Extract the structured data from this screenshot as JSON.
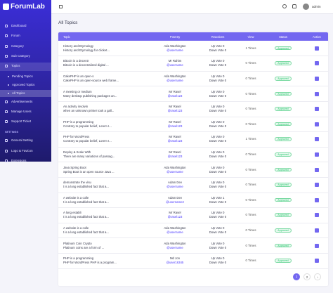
{
  "brand": "ForumLab",
  "sidebar": {
    "items": [
      "Dashboard",
      "Forum",
      "Category",
      "Sub Category",
      "Topics"
    ],
    "submenu": [
      "Pending Topics",
      "Approved Topics",
      "All Topics"
    ],
    "items2": [
      "Advertisements",
      "Manage Users",
      "Support Ticket"
    ],
    "settings_heading": "SETTINGS",
    "settings_items": [
      "General Setting",
      "Logo & Favicon",
      "Extensions"
    ]
  },
  "topbar": {
    "user": "admin"
  },
  "page": {
    "title": "All Topics"
  },
  "table": {
    "headers": [
      "Topic",
      "Post By",
      "Reactions",
      "View",
      "Status",
      "Action"
    ],
    "rows": [
      {
        "title": "History and Etymology",
        "excerpt": "History and Etymology for clicket...",
        "author": "Ada Washington",
        "username": "@username",
        "up": "Up Vote 0",
        "down": "Down Vote 0",
        "views": "1 Times",
        "status": "Approved"
      },
      {
        "title": "Bitcoin is a decentr",
        "excerpt": "Bitcoin is a decentralized digital ...",
        "author": "Mr Rahim",
        "username": "@username",
        "up": "Up Vote 0",
        "down": "Down Vote 0",
        "views": "0 Times",
        "status": "Approved"
      },
      {
        "title": "CakePHP is an open-s",
        "excerpt": "CakePHP is an open-source web frame...",
        "author": "Ada Washington",
        "username": "@username",
        "up": "Up Vote 0",
        "down": "Down Vote 0",
        "views": "0 Times",
        "status": "Approved"
      },
      {
        "title": "A meeting or medium",
        "excerpt": "Many desktop publishing packages an...",
        "author": "Mr Rasel",
        "username": "@rasel123",
        "up": "Up Vote 0",
        "down": "Down Vote 0",
        "views": "0 Times",
        "status": "Approved"
      },
      {
        "title": "An activity involvin",
        "excerpt": "when an unknown printer took a gall...",
        "author": "Mr Rasel",
        "username": "@rasel123",
        "up": "Up Vote 0",
        "down": "Down Vote 0",
        "views": "0 Times",
        "status": "Approved"
      },
      {
        "title": "PHP is a programming",
        "excerpt": "Contrary to popular belief, Lorem I...",
        "author": "Mr Rasel",
        "username": "@rasel123",
        "up": "Up Vote 0",
        "down": "Down Vote 0",
        "views": "0 Times",
        "status": "Approved"
      },
      {
        "title": "PHP for WordPress",
        "excerpt": "Contrary to popular belief, Lorem I...",
        "author": "Mr Rasel",
        "username": "@rasel123",
        "up": "Up Vote 0",
        "down": "Down Vote 0",
        "views": "1 Times",
        "status": "Approved"
      },
      {
        "title": "Deploy & Scale With",
        "excerpt": "There are many variations of passag...",
        "author": "Mr Rasel",
        "username": "@rasel123",
        "up": "Up Vote 0",
        "down": "Down Vote 0",
        "views": "0 Times",
        "status": "Approved"
      },
      {
        "title": "Java Spring Boot",
        "excerpt": "Spring Boot is an open source Java ...",
        "author": "Ada Washington",
        "username": "@username",
        "up": "Up Vote 0",
        "down": "Down Vote 0",
        "views": "0 Times",
        "status": "Approved"
      },
      {
        "title": "demonstrate the visu",
        "excerpt": "t is a long established fact that a...",
        "author": "Adam Dev",
        "username": "@username",
        "up": "Up Vote 0",
        "down": "Down Vote 0",
        "views": "0 Times",
        "status": "Approved"
      },
      {
        "title": "A website is a colle",
        "excerpt": "t is a long established fact that a...",
        "author": "Adam Dev",
        "username": "@username2",
        "up": "Up Vote 1",
        "down": "Down Vote 0",
        "views": "0 Times",
        "status": "Approved"
      },
      {
        "title": "A long establi",
        "excerpt": "t is a long established fact that a...",
        "author": "Mr Rasel",
        "username": "@rasel123",
        "up": "Up Vote 0",
        "down": "Down Vote 0",
        "views": "0 Times",
        "status": "Approved"
      },
      {
        "title": "A website is a colle",
        "excerpt": "t is a long established fact that a...",
        "author": "Ada Washington",
        "username": "@username",
        "up": "Up Vote 0",
        "down": "Down Vote 0",
        "views": "0 Times",
        "status": "Approved"
      },
      {
        "title": "Platinum Coin Crypto",
        "excerpt": "Platinum coins are a form of ...",
        "author": "Ada Washington",
        "username": "@username",
        "up": "Up Vote 0",
        "down": "Down Vote 0",
        "views": "0 Times",
        "status": "Approved"
      },
      {
        "title": "PHP is a programming",
        "excerpt": "PHP for WordPress PHP is a program...",
        "author": "Md Jon",
        "username": "@user16345",
        "up": "Up Vote 0",
        "down": "Down Vote 0",
        "views": "0 Times",
        "status": "Approved"
      }
    ]
  },
  "pagination": {
    "pages": [
      "1",
      "2"
    ],
    "next": "›"
  }
}
